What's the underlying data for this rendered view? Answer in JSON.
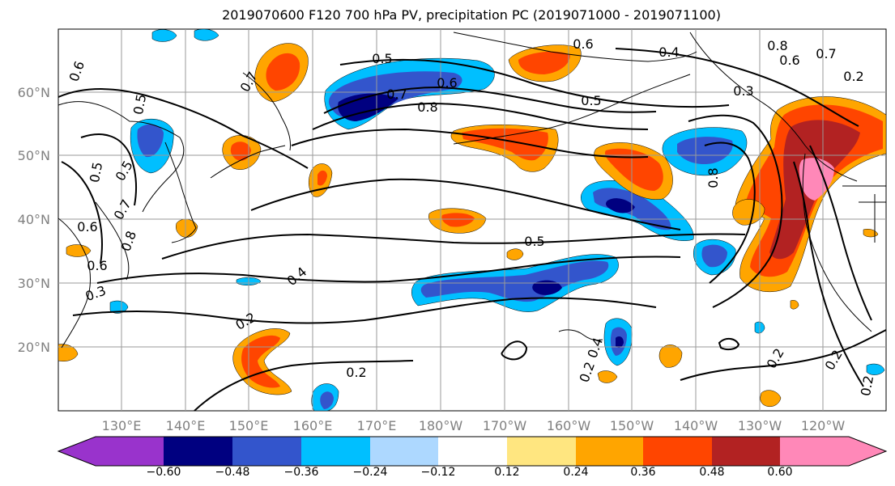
{
  "title": "2019070600 F120 700 hPa PV, precipitation PC (2019071000 - 2019071100)",
  "map": {
    "longitude_ticks": [
      "130°E",
      "140°E",
      "150°E",
      "160°E",
      "170°E",
      "180°W",
      "170°W",
      "160°W",
      "150°W",
      "140°W",
      "130°W",
      "120°W"
    ],
    "latitude_ticks": [
      "60°N",
      "50°N",
      "40°N",
      "30°N",
      "20°N"
    ],
    "contour_labels": [
      "0.6",
      "0.7",
      "0.5",
      "0.6",
      "0.4",
      "0.8",
      "0.6",
      "0.7",
      "0.6",
      "0.5",
      "0.8",
      "0.7",
      "0.5",
      "0.3",
      "0.5",
      "0.5",
      "0.7",
      "0.6",
      "0.8",
      "0.6",
      "0.3",
      "0.4",
      "0.2",
      "0.5",
      "0.2",
      "0.2",
      "0.2",
      "0.2",
      "0.2",
      "0.4",
      "0.8",
      "0.2"
    ],
    "colors": {
      "neg_060": "#9933cc",
      "neg_048": "#000080",
      "neg_036": "#3355cc",
      "neg_024": "#00bfff",
      "neg_012": "#add8ff",
      "pos_012": "#ffe680",
      "pos_024": "#ffa500",
      "pos_036": "#ff4500",
      "pos_048": "#b22222",
      "pos_060": "#ff88b8"
    }
  },
  "colorbar": {
    "colors": [
      "#9933cc",
      "#000080",
      "#3355cc",
      "#00bfff",
      "#add8ff",
      "#ffffff",
      "#ffe680",
      "#ffa500",
      "#ff4500",
      "#b22222",
      "#ff88b8"
    ],
    "labels": [
      "−0.60",
      "−0.48",
      "−0.36",
      "−0.24",
      "−0.12",
      "0.12",
      "0.24",
      "0.36",
      "0.48",
      "0.60"
    ]
  }
}
